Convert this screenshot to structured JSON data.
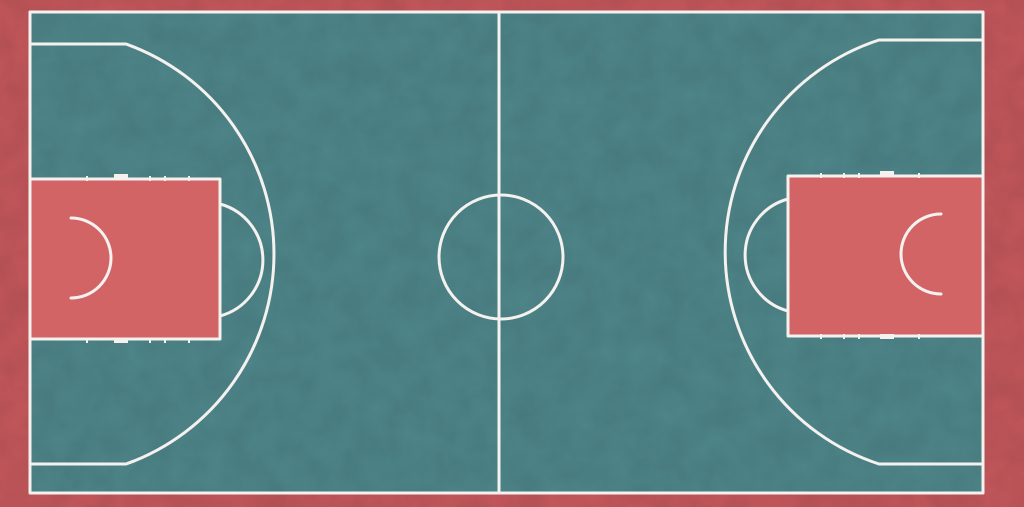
{
  "scene": {
    "subject": "basketball-court-aerial-view",
    "colors": {
      "border": "#c4585c",
      "court": "#4f878b",
      "paint": "#d36466",
      "lines": "#f4f1ee"
    }
  }
}
